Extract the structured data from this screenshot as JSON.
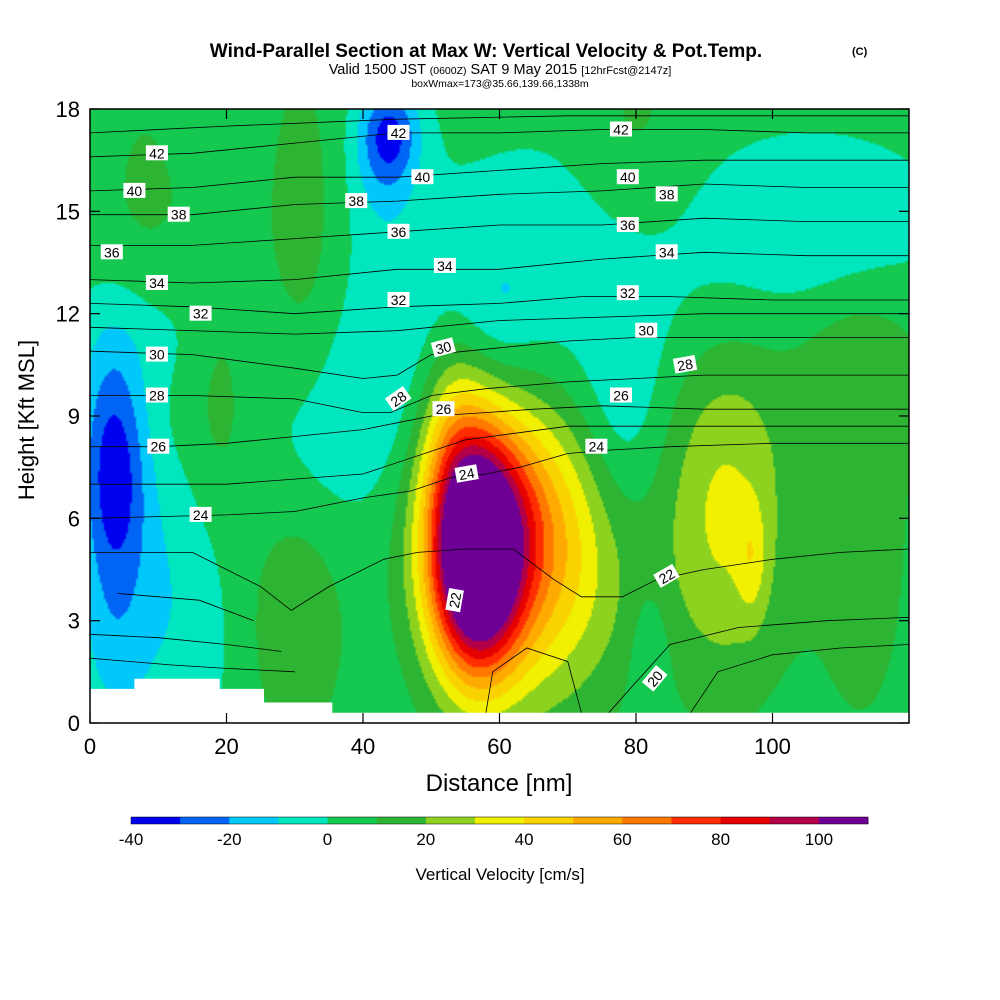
{
  "title": {
    "main": "Wind-Parallel Section at Max W: Vertical Velocity & Pot.Temp.",
    "copyright": "(C)",
    "valid_prefix": "Valid 1500 JST",
    "valid_utc": "(0600Z)",
    "valid_date": "SAT 9 May 2015",
    "forecast": "[12hrFcst@2147z]",
    "boxmax": "boxWmax=173@35.66,139.66,1338m"
  },
  "colors": {
    "frame": "#000000",
    "contour": "#000000",
    "terrain": "#ffffff"
  },
  "chart_data": {
    "type": "heatmap",
    "xlabel": "Distance [nm]",
    "ylabel": "Height [Kft MSL]",
    "xlim": [
      0,
      120
    ],
    "ylim": [
      0,
      18
    ],
    "x_ticks": [
      "0",
      "20",
      "40",
      "60",
      "80",
      "100"
    ],
    "y_ticks": [
      "0",
      "3",
      "6",
      "9",
      "12",
      "15",
      "18"
    ],
    "x_tick_values": [
      0,
      20,
      40,
      60,
      80,
      100
    ],
    "y_tick_values": [
      0,
      3,
      6,
      9,
      12,
      15,
      18
    ],
    "colorbar": {
      "label": "Vertical Velocity [cm/s]",
      "range": [
        -40,
        110
      ],
      "step": 10,
      "tick_labels": [
        "-40",
        "-20",
        "0",
        "20",
        "40",
        "60",
        "80",
        "100"
      ],
      "tick_values": [
        -40,
        -20,
        0,
        20,
        40,
        60,
        80,
        100
      ],
      "colors": [
        "#0000f0",
        "#0064f5",
        "#00c8fa",
        "#00e6be",
        "#14c850",
        "#2db432",
        "#8cd21e",
        "#f0f000",
        "#fad200",
        "#ffaa00",
        "#ff7800",
        "#ff2d00",
        "#e60000",
        "#b40046",
        "#6e0096"
      ]
    },
    "terrain": [
      [
        0,
        1.0
      ],
      [
        6.5,
        1.0
      ],
      [
        6.5,
        1.3
      ],
      [
        19,
        1.3
      ],
      [
        19,
        1.0
      ],
      [
        25.5,
        1.0
      ],
      [
        25.5,
        0.6
      ],
      [
        35.5,
        0.6
      ],
      [
        35.5,
        0.3
      ],
      [
        120,
        0.3
      ]
    ],
    "velocity_features": [
      {
        "x": 56.5,
        "y": 4.8,
        "sx": 4.5,
        "sy": 2.3,
        "w": 118
      },
      {
        "x": 60.5,
        "y": 6.3,
        "sx": 8.5,
        "sy": 2.4,
        "w": 40
      },
      {
        "x": 65,
        "y": 4.0,
        "sx": 9.5,
        "sy": 2.8,
        "w": 32
      },
      {
        "x": 53,
        "y": 8.5,
        "sx": 3.5,
        "sy": 2.0,
        "w": 22
      },
      {
        "x": 93,
        "y": 6.2,
        "sx": 6.5,
        "sy": 3.6,
        "w": 28
      },
      {
        "x": 97,
        "y": 4.8,
        "sx": 1.5,
        "sy": 1.2,
        "w": 14
      },
      {
        "x": 30,
        "y": 3.0,
        "sx": 5.0,
        "sy": 2.5,
        "w": 16
      },
      {
        "x": 19,
        "y": 10.0,
        "sx": 3.5,
        "sy": 3.5,
        "w": 12
      },
      {
        "x": 113,
        "y": 5.5,
        "sx": 6.0,
        "sy": 5.0,
        "w": 10
      },
      {
        "x": 112,
        "y": 10.5,
        "sx": 8.0,
        "sy": 2.0,
        "w": 10
      },
      {
        "x": 8,
        "y": 13.5,
        "sx": 6.0,
        "sy": 5.0,
        "w": 8
      },
      {
        "x": 31,
        "y": 14.0,
        "sx": 4.0,
        "sy": 4.0,
        "w": 12
      },
      {
        "x": 80,
        "y": 16.5,
        "sx": 6.0,
        "sy": 3.0,
        "w": 10
      },
      {
        "x": 3.5,
        "y": 7.5,
        "sx": 3.5,
        "sy": 2.6,
        "w": -40
      },
      {
        "x": 12,
        "y": 4.0,
        "sx": 7.0,
        "sy": 3.5,
        "w": -14
      },
      {
        "x": 3,
        "y": 2.0,
        "sx": 4.0,
        "sy": 2.0,
        "w": -10
      },
      {
        "x": 44,
        "y": 17.3,
        "sx": 3.0,
        "sy": 1.0,
        "w": -26
      },
      {
        "x": 43,
        "y": 16.5,
        "sx": 3.5,
        "sy": 1.6,
        "w": -14
      },
      {
        "x": 45,
        "y": 9.5,
        "sx": 6.0,
        "sy": 3.0,
        "w": -12
      },
      {
        "x": 32,
        "y": 8.5,
        "sx": 5.5,
        "sy": 2.5,
        "w": -10
      },
      {
        "x": 10,
        "y": 11.5,
        "sx": 9.0,
        "sy": 1.5,
        "w": -10
      },
      {
        "x": 78,
        "y": 9.0,
        "sx": 4.5,
        "sy": 2.5,
        "w": -12
      },
      {
        "x": 82,
        "y": 2.0,
        "sx": 2.0,
        "sy": 1.5,
        "w": -10
      },
      {
        "x": 75,
        "y": 13.5,
        "sx": 20.0,
        "sy": 2.5,
        "w": -12
      },
      {
        "x": 110,
        "y": 14.5,
        "sx": 10.0,
        "sy": 1.8,
        "w": -12
      },
      {
        "x": 60,
        "y": 12.0,
        "sx": 4.0,
        "sy": 1.3,
        "w": -8
      }
    ],
    "theta_contours": [
      {
        "label": "22",
        "points": [
          [
            0,
            5.0
          ],
          [
            15,
            5.0
          ],
          [
            25,
            4.0
          ],
          [
            29.5,
            3.3
          ],
          [
            35,
            4.0
          ],
          [
            43,
            4.8
          ],
          [
            48,
            5.0
          ],
          [
            55,
            5.1
          ],
          [
            62,
            5.1
          ],
          [
            68,
            4.2
          ],
          [
            72,
            3.7
          ],
          [
            78,
            3.7
          ],
          [
            83,
            4.2
          ],
          [
            90,
            4.5
          ],
          [
            100,
            4.8
          ],
          [
            110,
            5.0
          ],
          [
            120,
            5.1
          ]
        ]
      },
      {
        "label": "24",
        "points": [
          [
            0,
            6.0
          ],
          [
            10,
            6.05
          ],
          [
            20,
            6.1
          ],
          [
            30,
            6.2
          ],
          [
            40,
            6.6
          ],
          [
            47,
            6.8
          ],
          [
            53,
            7.2
          ],
          [
            58,
            7.3
          ],
          [
            63,
            7.5
          ],
          [
            70,
            7.9
          ],
          [
            76,
            8.0
          ],
          [
            85,
            8.1
          ],
          [
            100,
            8.2
          ],
          [
            120,
            8.2
          ]
        ]
      },
      {
        "label": "26",
        "points": [
          [
            0,
            8.1
          ],
          [
            10,
            8.1
          ],
          [
            20,
            8.2
          ],
          [
            30,
            8.4
          ],
          [
            40,
            8.6
          ],
          [
            45,
            8.8
          ],
          [
            50,
            9.0
          ],
          [
            58,
            9.1
          ],
          [
            65,
            9.2
          ],
          [
            75,
            9.3
          ],
          [
            90,
            9.2
          ],
          [
            100,
            9.2
          ],
          [
            120,
            9.2
          ]
        ]
      },
      {
        "label": "28",
        "points": [
          [
            0,
            9.6
          ],
          [
            15,
            9.6
          ],
          [
            30,
            9.5
          ],
          [
            40,
            9.1
          ],
          [
            44,
            9.1
          ],
          [
            50,
            9.6
          ],
          [
            58,
            9.8
          ],
          [
            70,
            10.0
          ],
          [
            80,
            10.1
          ],
          [
            90,
            10.2
          ],
          [
            100,
            10.2
          ],
          [
            120,
            10.2
          ]
        ]
      },
      {
        "label": "30",
        "points": [
          [
            0,
            10.9
          ],
          [
            15,
            10.8
          ],
          [
            30,
            10.4
          ],
          [
            40,
            10.1
          ],
          [
            45,
            10.2
          ],
          [
            50,
            10.8
          ],
          [
            60,
            11.0
          ],
          [
            70,
            11.2
          ],
          [
            80,
            11.3
          ],
          [
            100,
            11.3
          ],
          [
            120,
            11.3
          ]
        ]
      },
      {
        "label": "32",
        "points": [
          [
            0,
            12.3
          ],
          [
            15,
            12.2
          ],
          [
            30,
            12.0
          ],
          [
            45,
            12.2
          ],
          [
            60,
            12.3
          ],
          [
            72,
            12.5
          ],
          [
            85,
            12.5
          ],
          [
            100,
            12.4
          ],
          [
            120,
            12.4
          ]
        ]
      },
      {
        "label": "34",
        "points": [
          [
            0,
            13.0
          ],
          [
            15,
            12.9
          ],
          [
            30,
            13.0
          ],
          [
            45,
            13.3
          ],
          [
            60,
            13.3
          ],
          [
            75,
            13.6
          ],
          [
            90,
            13.8
          ],
          [
            105,
            13.7
          ],
          [
            120,
            13.7
          ]
        ]
      },
      {
        "label": "36",
        "points": [
          [
            0,
            14.0
          ],
          [
            15,
            14.0
          ],
          [
            30,
            14.2
          ],
          [
            45,
            14.4
          ],
          [
            60,
            14.6
          ],
          [
            75,
            14.6
          ],
          [
            90,
            14.8
          ],
          [
            105,
            14.7
          ],
          [
            120,
            14.7
          ]
        ]
      },
      {
        "label": "38",
        "points": [
          [
            0,
            14.9
          ],
          [
            15,
            14.9
          ],
          [
            30,
            15.2
          ],
          [
            45,
            15.3
          ],
          [
            60,
            15.5
          ],
          [
            75,
            15.6
          ],
          [
            90,
            15.8
          ],
          [
            105,
            15.7
          ],
          [
            120,
            15.7
          ]
        ]
      },
      {
        "label": "40",
        "points": [
          [
            0,
            15.6
          ],
          [
            15,
            15.7
          ],
          [
            30,
            16.0
          ],
          [
            45,
            16.0
          ],
          [
            60,
            16.2
          ],
          [
            75,
            16.4
          ],
          [
            90,
            16.5
          ],
          [
            105,
            16.5
          ],
          [
            120,
            16.5
          ]
        ]
      },
      {
        "label": "42",
        "points": [
          [
            0,
            16.6
          ],
          [
            15,
            16.7
          ],
          [
            30,
            17.0
          ],
          [
            45,
            17.3
          ],
          [
            60,
            17.3
          ],
          [
            75,
            17.4
          ],
          [
            90,
            17.4
          ],
          [
            105,
            17.3
          ],
          [
            120,
            17.3
          ]
        ]
      }
    ],
    "theta_lines_extra": [
      [
        [
          0,
          1.9
        ],
        [
          12,
          1.7
        ],
        [
          20,
          1.6
        ],
        [
          30,
          1.5
        ]
      ],
      [
        [
          0,
          2.6
        ],
        [
          10,
          2.5
        ],
        [
          20,
          2.3
        ],
        [
          28,
          2.1
        ]
      ],
      [
        [
          4,
          3.8
        ],
        [
          16,
          3.6
        ],
        [
          24,
          3.0
        ]
      ],
      [
        [
          58,
          0.3
        ],
        [
          59,
          1.5
        ],
        [
          64,
          2.2
        ],
        [
          70,
          1.8
        ],
        [
          72,
          0.3
        ]
      ],
      [
        [
          76,
          0.3
        ],
        [
          80,
          1.2
        ],
        [
          85,
          2.3
        ],
        [
          95,
          2.8
        ],
        [
          108,
          3.0
        ],
        [
          120,
          3.1
        ]
      ],
      [
        [
          88,
          0.3
        ],
        [
          92,
          1.5
        ],
        [
          100,
          2.0
        ],
        [
          110,
          2.2
        ],
        [
          120,
          2.3
        ]
      ],
      [
        [
          0,
          7.0
        ],
        [
          20,
          7.0
        ],
        [
          40,
          7.3
        ],
        [
          55,
          8.3
        ],
        [
          70,
          8.7
        ],
        [
          100,
          8.7
        ],
        [
          120,
          8.7
        ]
      ],
      [
        [
          0,
          11.6
        ],
        [
          30,
          11.4
        ],
        [
          45,
          11.5
        ],
        [
          60,
          11.8
        ],
        [
          90,
          12.0
        ],
        [
          120,
          12.0
        ]
      ],
      [
        [
          0,
          17.3
        ],
        [
          20,
          17.5
        ],
        [
          45,
          17.7
        ],
        [
          70,
          17.8
        ],
        [
          120,
          17.8
        ]
      ]
    ],
    "theta_labels": [
      {
        "text": "42",
        "x": 9.8,
        "y": 16.7,
        "angle": 0
      },
      {
        "text": "40",
        "x": 6.5,
        "y": 15.6,
        "angle": 0
      },
      {
        "text": "38",
        "x": 13,
        "y": 14.9,
        "angle": 0
      },
      {
        "text": "36",
        "x": 3.2,
        "y": 13.8,
        "angle": 0
      },
      {
        "text": "34",
        "x": 9.8,
        "y": 12.9,
        "angle": 0
      },
      {
        "text": "32",
        "x": 16.2,
        "y": 12.0,
        "angle": 0
      },
      {
        "text": "30",
        "x": 9.8,
        "y": 10.8,
        "angle": 0
      },
      {
        "text": "28",
        "x": 9.8,
        "y": 9.6,
        "angle": 0
      },
      {
        "text": "26",
        "x": 10,
        "y": 8.1,
        "angle": 0
      },
      {
        "text": "24",
        "x": 16.2,
        "y": 6.1,
        "angle": 0
      },
      {
        "text": "42",
        "x": 45.2,
        "y": 17.3,
        "angle": 0
      },
      {
        "text": "40",
        "x": 48.7,
        "y": 16.0,
        "angle": 0
      },
      {
        "text": "38",
        "x": 39,
        "y": 15.3,
        "angle": 0
      },
      {
        "text": "36",
        "x": 45.2,
        "y": 14.4,
        "angle": 0
      },
      {
        "text": "34",
        "x": 52,
        "y": 13.4,
        "angle": 0
      },
      {
        "text": "32",
        "x": 45.2,
        "y": 12.4,
        "angle": 0
      },
      {
        "text": "30",
        "x": 51.8,
        "y": 11.0,
        "angle": -15
      },
      {
        "text": "28",
        "x": 45.2,
        "y": 9.5,
        "angle": -35
      },
      {
        "text": "26",
        "x": 51.8,
        "y": 9.2,
        "angle": 0
      },
      {
        "text": "24",
        "x": 55.2,
        "y": 7.3,
        "angle": -10
      },
      {
        "text": "22",
        "x": 53.5,
        "y": 3.6,
        "angle": -80
      },
      {
        "text": "42",
        "x": 77.8,
        "y": 17.4,
        "angle": 0
      },
      {
        "text": "40",
        "x": 78.8,
        "y": 16.0,
        "angle": 0
      },
      {
        "text": "38",
        "x": 84.5,
        "y": 15.5,
        "angle": 0
      },
      {
        "text": "36",
        "x": 78.8,
        "y": 14.6,
        "angle": 0
      },
      {
        "text": "34",
        "x": 84.5,
        "y": 13.8,
        "angle": 0
      },
      {
        "text": "32",
        "x": 78.8,
        "y": 12.6,
        "angle": 0
      },
      {
        "text": "30",
        "x": 81.5,
        "y": 11.5,
        "angle": 0
      },
      {
        "text": "28",
        "x": 87.2,
        "y": 10.5,
        "angle": -10
      },
      {
        "text": "26",
        "x": 77.8,
        "y": 9.6,
        "angle": 0
      },
      {
        "text": "24",
        "x": 74.2,
        "y": 8.1,
        "angle": 0
      },
      {
        "text": "22",
        "x": 84.5,
        "y": 4.3,
        "angle": -30
      },
      {
        "text": "20",
        "x": 82.8,
        "y": 1.3,
        "angle": -50
      }
    ]
  }
}
